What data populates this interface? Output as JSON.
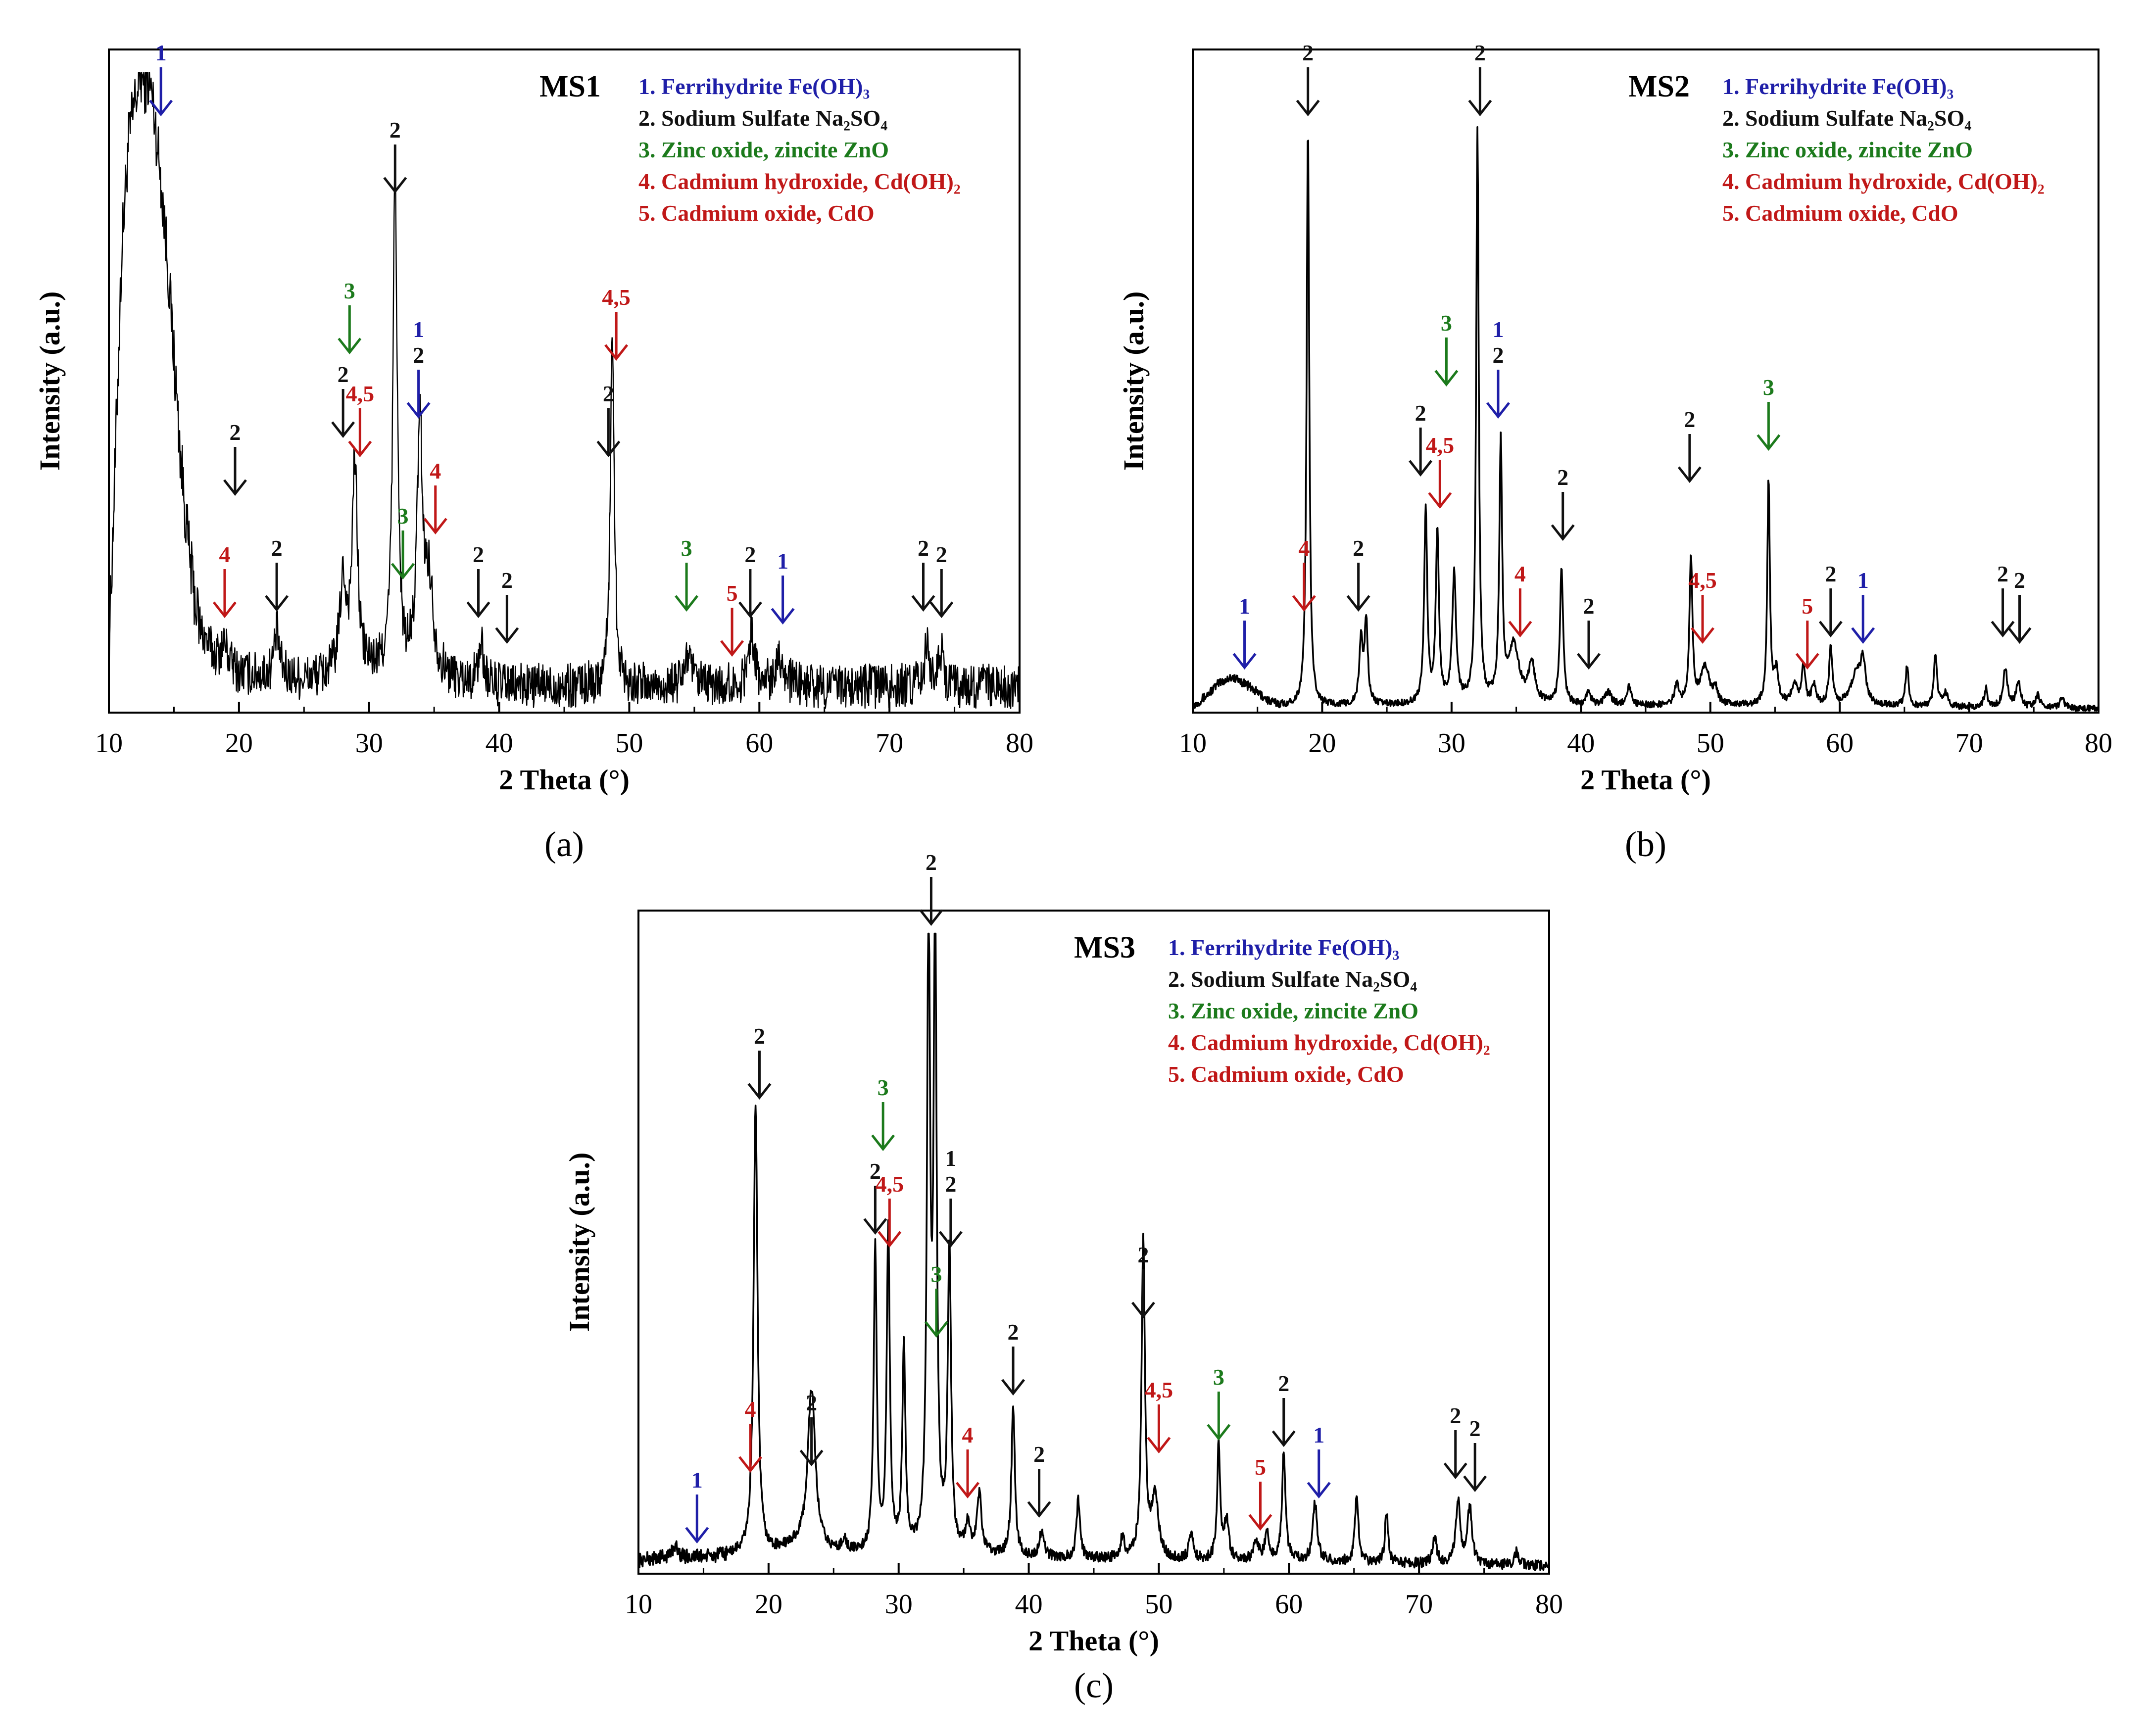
{
  "chart_data": [
    {
      "type": "line",
      "panel_label": "(a)",
      "sample_label": "MS1",
      "xlabel": "2 Theta (°)",
      "ylabel": "Intensity (a.u.)",
      "xlim": [
        10,
        80
      ],
      "ylim": [
        0,
        100
      ],
      "xticks": [
        10,
        20,
        30,
        40,
        50,
        60,
        70,
        80
      ],
      "legend": [
        {
          "text": "1. Ferrihydrite Fe(OH)₃",
          "color": "#1f1fa8"
        },
        {
          "text": "2. Sodium Sulfate Na₂SO₄",
          "color": "#111111"
        },
        {
          "text": "3. Zinc oxide, zincite ZnO",
          "color": "#1c7a1c"
        },
        {
          "text": "4. Cadmium hydroxide, Cd(OH)₂",
          "color": "#c01818"
        },
        {
          "text": "5. Cadmium oxide, CdO",
          "color": "#c01818"
        }
      ],
      "background": [
        [
          10,
          9
        ],
        [
          10.5,
          40
        ],
        [
          11,
          72
        ],
        [
          11.5,
          88
        ],
        [
          12,
          93
        ],
        [
          12.5,
          95
        ],
        [
          13,
          94
        ],
        [
          13.5,
          90
        ],
        [
          14,
          82
        ],
        [
          14.5,
          70
        ],
        [
          15,
          55
        ],
        [
          15.5,
          40
        ],
        [
          16,
          28
        ],
        [
          16.5,
          19
        ],
        [
          17,
          13
        ],
        [
          18,
          9
        ],
        [
          20,
          6
        ],
        [
          25,
          5
        ],
        [
          30,
          6
        ],
        [
          35,
          5
        ],
        [
          40,
          4
        ],
        [
          50,
          4
        ],
        [
          60,
          4
        ],
        [
          70,
          4
        ],
        [
          80,
          4
        ]
      ],
      "peaks": [
        [
          12.4,
          3,
          0.4
        ],
        [
          13.2,
          4,
          0.4
        ],
        [
          18.9,
          3,
          0.3
        ],
        [
          22.9,
          7,
          0.25
        ],
        [
          28.0,
          14,
          0.3
        ],
        [
          28.9,
          32,
          0.25
        ],
        [
          32.0,
          78,
          0.2
        ],
        [
          33.9,
          38,
          0.25
        ],
        [
          34.6,
          14,
          0.4
        ],
        [
          38.6,
          6,
          0.25
        ],
        [
          48.7,
          56,
          0.18
        ],
        [
          54.5,
          5,
          0.3
        ],
        [
          59.4,
          9,
          0.25
        ],
        [
          61.5,
          5,
          0.4
        ],
        [
          72.9,
          6,
          0.25
        ],
        [
          73.9,
          6,
          0.25
        ]
      ],
      "noise": 3.5,
      "annotations": [
        {
          "x": 14,
          "y": 93,
          "label": "1",
          "color": "#1f1fa8"
        },
        {
          "x": 18.9,
          "y": 15,
          "label": "4",
          "color": "#c01818"
        },
        {
          "x": 19.7,
          "y": 34,
          "label": "2",
          "color": "#111111"
        },
        {
          "x": 22.9,
          "y": 16,
          "label": "2",
          "color": "#111111"
        },
        {
          "x": 28.0,
          "y": 43,
          "label": "2",
          "color": "#111111"
        },
        {
          "x": 29.3,
          "y": 40,
          "label": "4,5",
          "color": "#c01818"
        },
        {
          "x": 28.5,
          "y": 56,
          "label": "3",
          "color": "#1c7a1c"
        },
        {
          "x": 32.0,
          "y": 81,
          "label": "2",
          "color": "#111111"
        },
        {
          "x": 32.6,
          "y": 21,
          "label": "3",
          "color": "#1c7a1c"
        },
        {
          "x": 33.8,
          "y": 46,
          "label": "1",
          "label2": "2",
          "color2": "#111111",
          "color": "#1f1fa8"
        },
        {
          "x": 35.1,
          "y": 28,
          "label": "4",
          "color": "#c01818"
        },
        {
          "x": 38.4,
          "y": 15,
          "label": "2",
          "color": "#111111"
        },
        {
          "x": 40.6,
          "y": 11,
          "label": "2",
          "color": "#111111"
        },
        {
          "x": 48.4,
          "y": 40,
          "label": "2",
          "color": "#111111"
        },
        {
          "x": 49.0,
          "y": 55,
          "label": "4,5",
          "color": "#c01818"
        },
        {
          "x": 54.4,
          "y": 16,
          "label": "3",
          "color": "#1c7a1c"
        },
        {
          "x": 57.9,
          "y": 9,
          "label": "5",
          "color": "#c01818"
        },
        {
          "x": 59.3,
          "y": 15,
          "label": "2",
          "color": "#111111"
        },
        {
          "x": 61.8,
          "y": 14,
          "label": "1",
          "color": "#1f1fa8"
        },
        {
          "x": 72.6,
          "y": 16,
          "label": "2",
          "color": "#111111"
        },
        {
          "x": 74.0,
          "y": 15,
          "label": "2",
          "color": "#111111"
        }
      ]
    },
    {
      "type": "line",
      "panel_label": "(b)",
      "sample_label": "MS2",
      "xlabel": "2 Theta (°)",
      "ylabel": "Intensity (a.u.)",
      "xlim": [
        10,
        80
      ],
      "ylim": [
        0,
        100
      ],
      "xticks": [
        10,
        20,
        30,
        40,
        50,
        60,
        70,
        80
      ],
      "legend": [
        {
          "text": "1. Ferrihydrite Fe(OH)₃",
          "color": "#1f1fa8"
        },
        {
          "text": "2. Sodium Sulfate Na₂SO₄",
          "color": "#111111"
        },
        {
          "text": "3. Zinc oxide, zincite ZnO",
          "color": "#1c7a1c"
        },
        {
          "text": "4. Cadmium hydroxide, Cd(OH)₂",
          "color": "#c01818"
        },
        {
          "text": "5. Cadmium oxide, CdO",
          "color": "#c01818"
        }
      ],
      "background": [
        [
          10,
          1
        ],
        [
          11,
          2.5
        ],
        [
          12,
          4.5
        ],
        [
          13,
          5.5
        ],
        [
          14,
          4.5
        ],
        [
          15,
          3
        ],
        [
          16,
          1.5
        ],
        [
          17,
          1
        ],
        [
          20,
          1
        ],
        [
          30,
          1.2
        ],
        [
          40,
          1
        ],
        [
          50,
          1
        ],
        [
          60,
          1
        ],
        [
          70,
          0.8
        ],
        [
          80,
          0.6
        ]
      ],
      "peaks": [
        [
          18.9,
          90,
          0.12
        ],
        [
          23.0,
          10,
          0.15
        ],
        [
          23.4,
          13,
          0.15
        ],
        [
          28.0,
          30,
          0.14
        ],
        [
          28.9,
          27,
          0.14
        ],
        [
          30.2,
          20,
          0.18
        ],
        [
          32.0,
          89,
          0.12
        ],
        [
          33.8,
          40,
          0.13
        ],
        [
          34.8,
          9,
          0.5
        ],
        [
          36.2,
          6,
          0.3
        ],
        [
          38.5,
          21,
          0.15
        ],
        [
          40.6,
          2,
          0.2
        ],
        [
          42.1,
          2,
          0.3
        ],
        [
          43.7,
          3,
          0.2
        ],
        [
          47.4,
          3,
          0.2
        ],
        [
          48.5,
          23,
          0.14
        ],
        [
          49.6,
          6,
          0.4
        ],
        [
          50.4,
          2,
          0.2
        ],
        [
          54.5,
          35,
          0.12
        ],
        [
          55.1,
          5,
          0.2
        ],
        [
          56.5,
          3,
          0.3
        ],
        [
          57.2,
          6,
          0.15
        ],
        [
          58.0,
          3,
          0.2
        ],
        [
          59.3,
          9,
          0.15
        ],
        [
          61.3,
          5,
          0.5
        ],
        [
          61.8,
          6,
          0.2
        ],
        [
          65.2,
          6,
          0.15
        ],
        [
          67.4,
          8,
          0.15
        ],
        [
          68.2,
          2,
          0.2
        ],
        [
          71.3,
          3,
          0.15
        ],
        [
          72.8,
          6,
          0.2
        ],
        [
          73.8,
          4,
          0.2
        ],
        [
          75.3,
          2,
          0.2
        ],
        [
          77.2,
          1.5,
          0.2
        ]
      ],
      "noise": 0.5,
      "annotations": [
        {
          "x": 14.0,
          "y": 7,
          "label": "1",
          "color": "#1f1fa8"
        },
        {
          "x": 18.6,
          "y": 16,
          "label": "4",
          "color": "#c01818"
        },
        {
          "x": 18.9,
          "y": 93,
          "label": "2",
          "color": "#111111"
        },
        {
          "x": 22.8,
          "y": 16,
          "label": "2",
          "color": "#111111"
        },
        {
          "x": 27.6,
          "y": 37,
          "label": "2",
          "color": "#111111"
        },
        {
          "x": 29.1,
          "y": 32,
          "label": "4,5",
          "color": "#c01818"
        },
        {
          "x": 29.6,
          "y": 51,
          "label": "3",
          "color": "#1c7a1c"
        },
        {
          "x": 32.2,
          "y": 93,
          "label": "2",
          "color": "#111111"
        },
        {
          "x": 33.6,
          "y": 46,
          "label": "1",
          "label2": "2",
          "color2": "#111111",
          "color": "#1f1fa8"
        },
        {
          "x": 35.3,
          "y": 12,
          "label": "4",
          "color": "#c01818"
        },
        {
          "x": 38.6,
          "y": 27,
          "label": "2",
          "color": "#111111"
        },
        {
          "x": 40.6,
          "y": 7,
          "label": "2",
          "color": "#111111"
        },
        {
          "x": 48.4,
          "y": 36,
          "label": "2",
          "color": "#111111"
        },
        {
          "x": 49.4,
          "y": 11,
          "label": "4,5",
          "color": "#c01818"
        },
        {
          "x": 54.5,
          "y": 41,
          "label": "3",
          "color": "#1c7a1c"
        },
        {
          "x": 57.5,
          "y": 7,
          "label": "5",
          "color": "#c01818"
        },
        {
          "x": 59.3,
          "y": 12,
          "label": "2",
          "color": "#111111"
        },
        {
          "x": 61.8,
          "y": 11,
          "label": "1",
          "color": "#1f1fa8"
        },
        {
          "x": 72.6,
          "y": 12,
          "label": "2",
          "color": "#111111"
        },
        {
          "x": 73.9,
          "y": 11,
          "label": "2",
          "color": "#111111"
        }
      ]
    },
    {
      "type": "line",
      "panel_label": "(c)",
      "sample_label": "MS3",
      "xlabel": "2 Theta (°)",
      "ylabel": "Intensity (a.u.)",
      "xlim": [
        10,
        80
      ],
      "ylim": [
        0,
        100
      ],
      "xticks": [
        10,
        20,
        30,
        40,
        50,
        60,
        70,
        80
      ],
      "legend": [
        {
          "text": "1. Ferrihydrite Fe(OH)₃",
          "color": "#1f1fa8"
        },
        {
          "text": "2. Sodium Sulfate Na₂SO₄",
          "color": "#111111"
        },
        {
          "text": "3. Zinc oxide, zincite ZnO",
          "color": "#1c7a1c"
        },
        {
          "text": "4. Cadmium hydroxide, Cd(OH)₂",
          "color": "#c01818"
        },
        {
          "text": "5. Cadmium oxide, CdO",
          "color": "#c01818"
        }
      ],
      "background": [
        [
          10,
          2
        ],
        [
          12,
          2.5
        ],
        [
          14,
          2.5
        ],
        [
          16,
          2.5
        ],
        [
          18,
          3
        ],
        [
          20,
          3
        ],
        [
          22,
          4
        ],
        [
          25,
          3
        ],
        [
          30,
          3
        ],
        [
          35,
          3
        ],
        [
          40,
          2.5
        ],
        [
          50,
          2
        ],
        [
          60,
          2
        ],
        [
          70,
          1.5
        ],
        [
          80,
          1.2
        ]
      ],
      "peaks": [
        [
          12.8,
          2,
          0.2
        ],
        [
          19.0,
          70,
          0.18
        ],
        [
          23.3,
          25,
          0.35
        ],
        [
          25.8,
          2,
          0.2
        ],
        [
          28.2,
          47,
          0.14
        ],
        [
          29.2,
          50,
          0.14
        ],
        [
          30.4,
          32,
          0.14
        ],
        [
          32.3,
          99,
          0.14
        ],
        [
          32.8,
          98,
          0.14
        ],
        [
          33.9,
          47,
          0.15
        ],
        [
          35.3,
          4,
          0.2
        ],
        [
          36.2,
          9,
          0.2
        ],
        [
          38.8,
          23,
          0.16
        ],
        [
          41.0,
          4,
          0.2
        ],
        [
          43.8,
          9,
          0.16
        ],
        [
          47.2,
          3,
          0.2
        ],
        [
          48.8,
          49,
          0.16
        ],
        [
          49.7,
          10,
          0.3
        ],
        [
          52.5,
          4,
          0.2
        ],
        [
          54.6,
          18,
          0.14
        ],
        [
          55.2,
          6,
          0.2
        ],
        [
          57.5,
          3,
          0.2
        ],
        [
          58.3,
          4,
          0.2
        ],
        [
          59.6,
          17,
          0.16
        ],
        [
          62.0,
          9,
          0.2
        ],
        [
          65.2,
          10,
          0.16
        ],
        [
          67.5,
          8,
          0.14
        ],
        [
          71.2,
          4,
          0.2
        ],
        [
          73.0,
          10,
          0.2
        ],
        [
          73.9,
          9,
          0.2
        ],
        [
          77.5,
          2,
          0.2
        ]
      ],
      "noise": 0.8,
      "annotations": [
        {
          "x": 14.5,
          "y": 5,
          "label": "1",
          "color": "#1f1fa8"
        },
        {
          "x": 18.6,
          "y": 16,
          "label": "4",
          "color": "#c01818"
        },
        {
          "x": 19.3,
          "y": 74,
          "label": "2",
          "color": "#111111"
        },
        {
          "x": 23.3,
          "y": 17,
          "label": "2",
          "color": "#111111"
        },
        {
          "x": 28.2,
          "y": 53,
          "label": "2",
          "color": "#111111"
        },
        {
          "x": 29.3,
          "y": 51,
          "label": "4,5",
          "color": "#c01818"
        },
        {
          "x": 28.8,
          "y": 66,
          "label": "3",
          "color": "#1c7a1c"
        },
        {
          "x": 32.5,
          "y": 101,
          "label": "2",
          "color": "#111111"
        },
        {
          "x": 32.9,
          "y": 37,
          "label": "3",
          "color": "#1c7a1c"
        },
        {
          "x": 34.0,
          "y": 51,
          "label": "1",
          "label2": "2",
          "color2": "#111111",
          "color": "#111111"
        },
        {
          "x": 35.3,
          "y": 12,
          "label": "4",
          "color": "#c01818"
        },
        {
          "x": 38.8,
          "y": 28,
          "label": "2",
          "color": "#111111"
        },
        {
          "x": 40.8,
          "y": 9,
          "label": "2",
          "color": "#111111"
        },
        {
          "x": 48.8,
          "y": 40,
          "label": "2",
          "color": "#111111"
        },
        {
          "x": 50.0,
          "y": 19,
          "label": "4,5",
          "color": "#c01818"
        },
        {
          "x": 54.6,
          "y": 21,
          "label": "3",
          "color": "#1c7a1c"
        },
        {
          "x": 57.8,
          "y": 7,
          "label": "5",
          "color": "#c01818"
        },
        {
          "x": 59.6,
          "y": 20,
          "label": "2",
          "color": "#111111"
        },
        {
          "x": 62.3,
          "y": 12,
          "label": "1",
          "color": "#1f1fa8"
        },
        {
          "x": 72.8,
          "y": 15,
          "label": "2",
          "color": "#111111"
        },
        {
          "x": 74.3,
          "y": 13,
          "label": "2",
          "color": "#111111"
        }
      ]
    }
  ]
}
